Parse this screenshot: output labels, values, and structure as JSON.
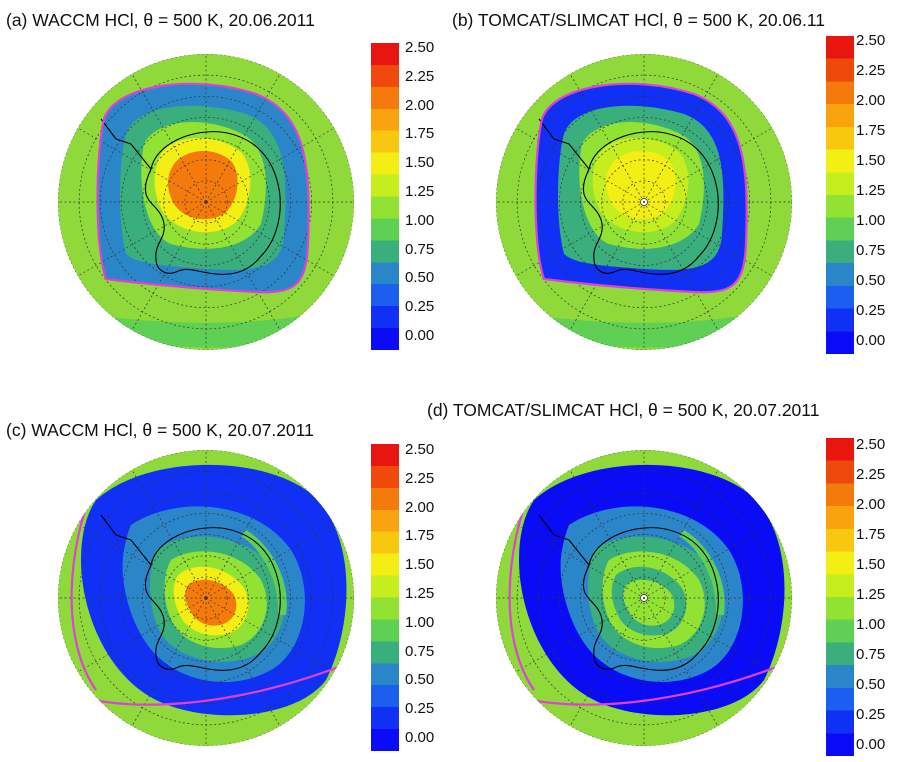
{
  "panels": [
    {
      "id": "a",
      "title": "(a)  WACCM HCl, θ = 500 K, 20.06.2011",
      "pole_marker": false
    },
    {
      "id": "b",
      "title": "(b)  TOMCAT/SLIMCAT HCl, θ = 500 K, 20.06.11",
      "pole_marker": true
    },
    {
      "id": "c",
      "title": "(c)  WACCM HCl, θ = 500 K, 20.07.2011",
      "pole_marker": false
    },
    {
      "id": "d",
      "title": "(d)  TOMCAT/SLIMCAT HCl, θ = 500 K, 20.07.2011",
      "pole_marker": true
    }
  ],
  "colorbar": {
    "ticks": [
      "2.50",
      "2.25",
      "2.00",
      "1.75",
      "1.50",
      "1.25",
      "1.00",
      "0.75",
      "0.50",
      "0.25",
      "0.00"
    ],
    "colors": [
      "#e8160e",
      "#ef4a0c",
      "#f57a0c",
      "#f9a30f",
      "#f7c80f",
      "#f3ee14",
      "#c6ee1e",
      "#92e233",
      "#5fd053",
      "#3aae7d",
      "#2b86c9",
      "#1c5ef0",
      "#1030f6",
      "#0a0bf7"
    ]
  },
  "colors": {
    "vortex_edge": "#e040d8",
    "coastline": "#000000",
    "grid": "#333333",
    "background_field": "#8fd93a"
  }
}
